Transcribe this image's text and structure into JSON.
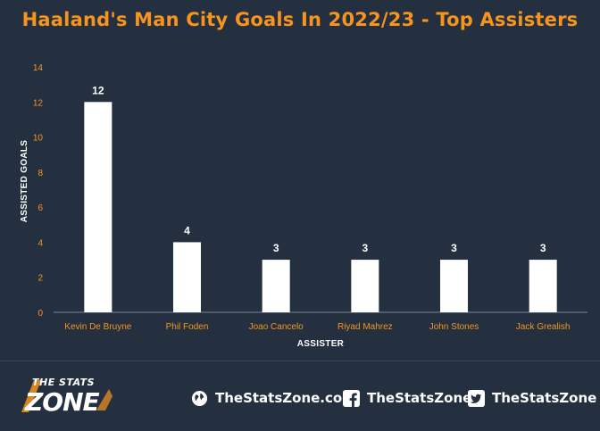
{
  "chart_data": {
    "type": "bar",
    "title": "Haaland's Man City Goals In 2022/23 - Top Assisters",
    "categories": [
      "Kevin De Bruyne",
      "Phil Foden",
      "Joao Cancelo",
      "Riyad Mahrez",
      "John Stones",
      "Jack Grealish"
    ],
    "values": [
      12,
      4,
      3,
      3,
      3,
      3
    ],
    "xlabel": "ASSISTER",
    "ylabel": "ASSISTED GOALS",
    "ylim": [
      0,
      14
    ],
    "yticks": [
      0,
      2,
      4,
      6,
      8,
      10,
      12,
      14
    ],
    "grid": false,
    "legend": "none",
    "bar_color": "#ffffff",
    "label_color": "#f7941d",
    "background": "#243040"
  },
  "footer": {
    "brand_top": "THE STATS",
    "brand_bottom": "ZONE",
    "website": "TheStatsZone.com",
    "facebook": "TheStatsZone",
    "twitter": "TheStatsZone",
    "website_icon": "globe-icon",
    "facebook_icon": "facebook-icon",
    "twitter_icon": "twitter-icon"
  }
}
